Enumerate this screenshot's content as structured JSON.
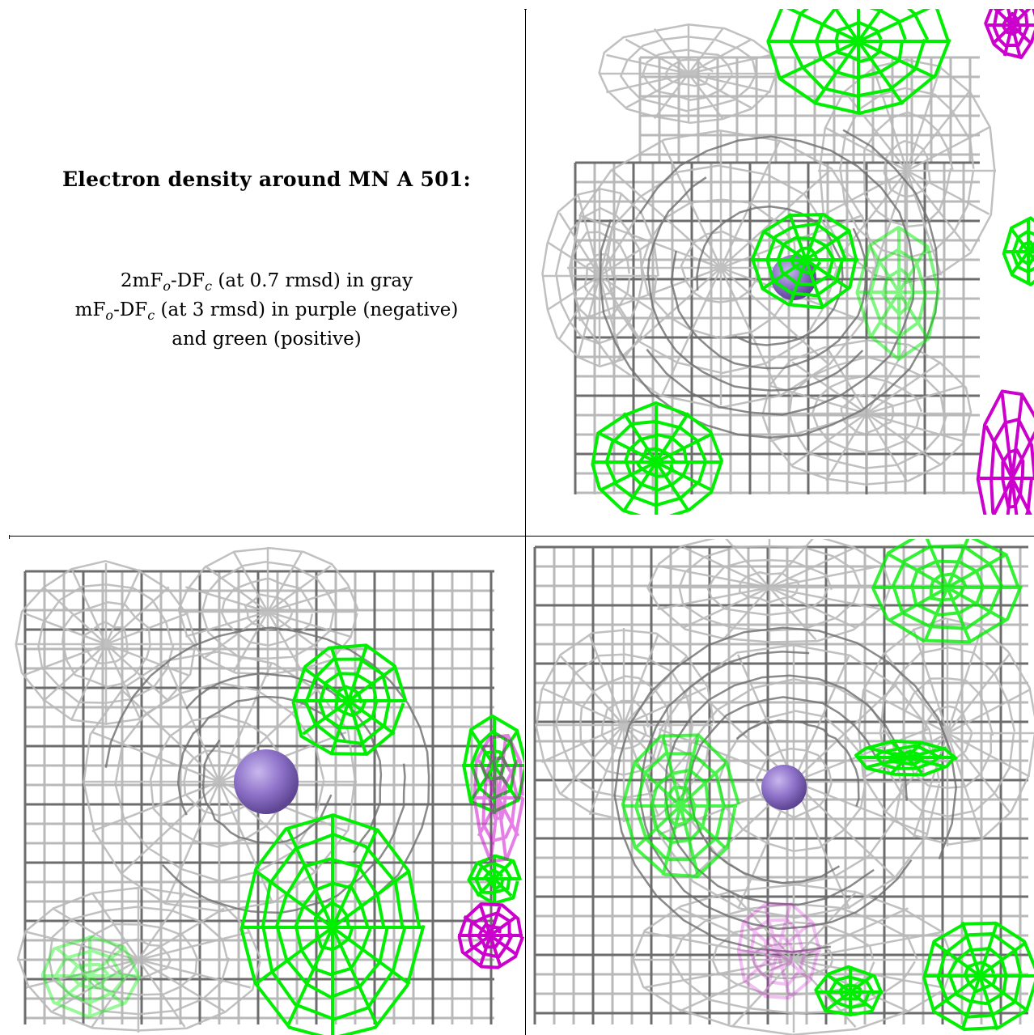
{
  "caption": {
    "title": "Electron density around MN A 501:",
    "line1": {
      "a": "2mF",
      "a_sub": "o",
      "b": "-DF",
      "b_sub": "c",
      "rest": " (at 0.7 rmsd) in gray"
    },
    "line2": {
      "a": "mF",
      "a_sub": "o",
      "b": "-DF",
      "b_sub": "c",
      "rest": " (at 3 rmsd) in purple (negative)"
    },
    "line3": "and green (positive)"
  },
  "colors": {
    "density_2fofc": "#b9b9b9",
    "density_2fofc_dark": "#6d6d6d",
    "density_positive": "#00ee00",
    "density_negative": "#cc00cc",
    "manganese_atom": "#8e72c9"
  },
  "panels": [
    {
      "name": "panel-top-right",
      "atom": "MN A 501"
    },
    {
      "name": "panel-bottom-left",
      "atom": "MN A 501"
    },
    {
      "name": "panel-bottom-right",
      "atom": "MN A 501"
    }
  ]
}
